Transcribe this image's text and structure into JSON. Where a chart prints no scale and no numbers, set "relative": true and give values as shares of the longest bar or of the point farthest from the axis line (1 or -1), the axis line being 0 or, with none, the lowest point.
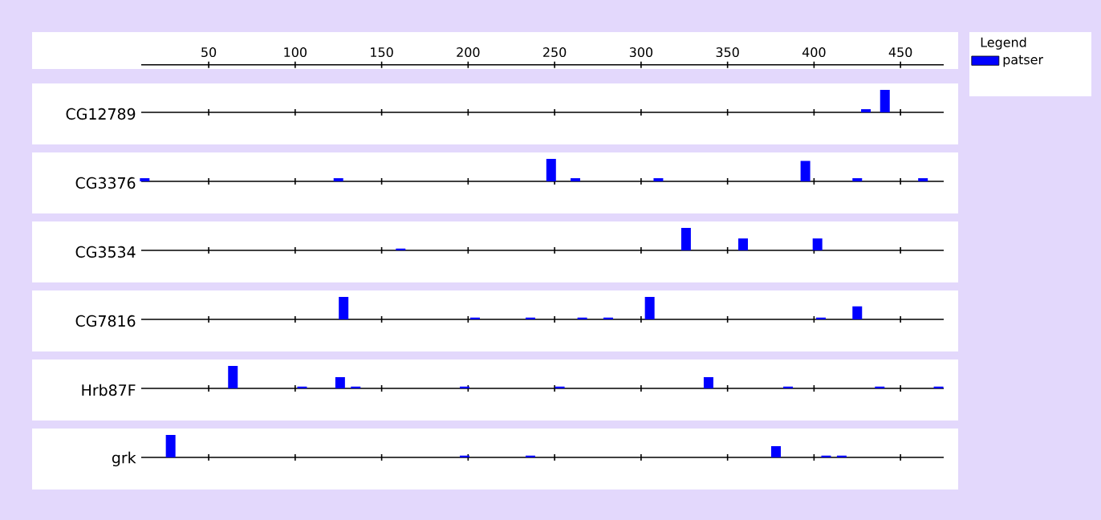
{
  "chart_data": [
    {
      "type": "bar",
      "ylabel": "CG12789",
      "relative": true,
      "xlim": [
        11,
        475
      ],
      "xticks": [
        50,
        100,
        150,
        200,
        250,
        300,
        350,
        400,
        450
      ],
      "tick_labels": "x",
      "legend": "top right",
      "legend_title": "Legend",
      "x": [
        430,
        441
      ],
      "series": [
        {
          "name": "patser",
          "color": "#0000ff",
          "values": [
            0.14,
            1
          ]
        }
      ]
    },
    {
      "type": "bar",
      "ylabel": "CG3376",
      "relative": true,
      "xlim": [
        11,
        475
      ],
      "xticks": [
        50,
        100,
        150,
        200,
        250,
        300,
        350,
        400,
        450
      ],
      "tick_labels": false,
      "x": [
        13,
        125,
        248,
        262,
        310,
        395,
        425,
        463
      ],
      "series": [
        {
          "color": "#0000ff",
          "values": [
            0.14,
            0.14,
            1,
            0.14,
            0.14,
            0.91,
            0.14,
            0.14
          ]
        }
      ]
    },
    {
      "type": "bar",
      "ylabel": "CG3534",
      "relative": true,
      "xlim": [
        11,
        475
      ],
      "xticks": [
        50,
        100,
        150,
        200,
        250,
        300,
        350,
        400,
        450
      ],
      "tick_labels": false,
      "x": [
        161,
        326,
        359,
        402
      ],
      "series": [
        {
          "color": "#0000ff",
          "values": [
            0.08,
            1,
            0.53,
            0.53
          ]
        }
      ]
    },
    {
      "type": "bar",
      "ylabel": "CG7816",
      "relative": true,
      "xlim": [
        11,
        475
      ],
      "xticks": [
        50,
        100,
        150,
        200,
        250,
        300,
        350,
        400,
        450
      ],
      "tick_labels": false,
      "x": [
        128,
        204,
        236,
        266,
        281,
        305,
        404,
        425
      ],
      "series": [
        {
          "color": "#0000ff",
          "values": [
            1,
            0.08,
            0.08,
            0.08,
            0.08,
            1,
            0.08,
            0.58
          ]
        }
      ]
    },
    {
      "type": "bar",
      "ylabel": "Hrb87F",
      "relative": true,
      "xlim": [
        11,
        475
      ],
      "xticks": [
        50,
        100,
        150,
        200,
        250,
        300,
        350,
        400,
        450
      ],
      "tick_labels": false,
      "x": [
        64,
        104,
        126,
        135,
        198,
        253,
        339,
        385,
        438,
        472
      ],
      "series": [
        {
          "color": "#0000ff",
          "values": [
            1,
            0.08,
            0.5,
            0.08,
            0.08,
            0.08,
            0.5,
            0.08,
            0.08,
            0.08
          ]
        }
      ]
    },
    {
      "type": "bar",
      "ylabel": "grk",
      "relative": true,
      "xlim": [
        11,
        475
      ],
      "xticks": [
        50,
        100,
        150,
        200,
        250,
        300,
        350,
        400,
        450
      ],
      "tick_labels": false,
      "x": [
        28,
        198,
        236,
        378,
        407,
        416
      ],
      "series": [
        {
          "color": "#0000ff",
          "values": [
            1,
            0.08,
            0.08,
            0.5,
            0.08,
            0.08
          ]
        }
      ]
    }
  ]
}
